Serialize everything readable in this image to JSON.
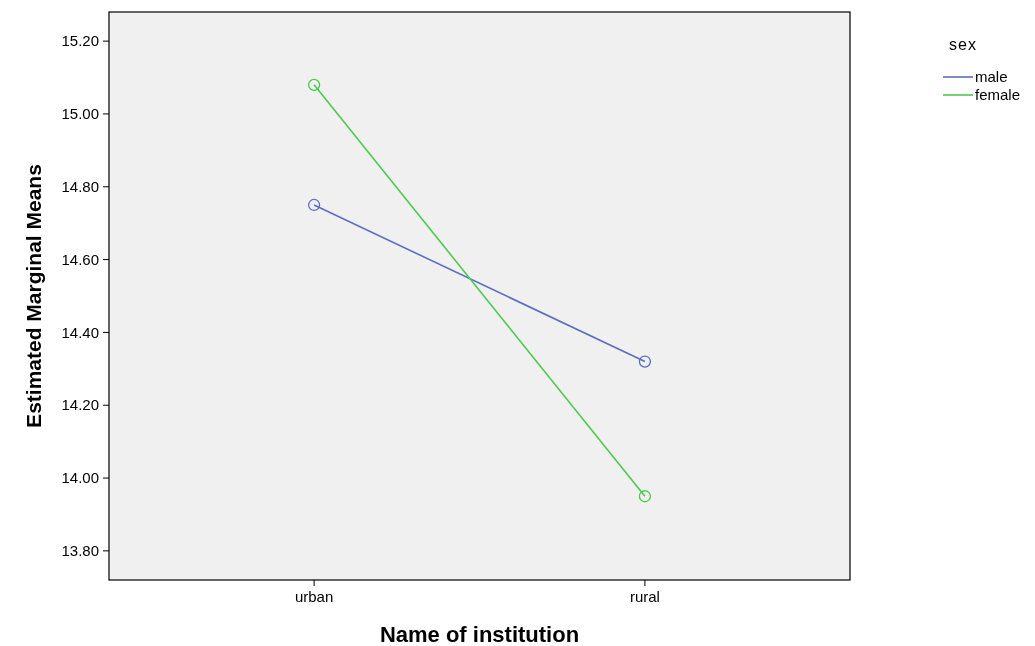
{
  "chart_data": {
    "type": "line",
    "xlabel": "Name of institution",
    "ylabel": "Estimated Marginal Means",
    "legend_title": "sex",
    "categories": [
      "urban",
      "rural"
    ],
    "series": [
      {
        "name": "male",
        "color": "#5b6fc0",
        "values": [
          14.75,
          14.32
        ]
      },
      {
        "name": "female",
        "color": "#4dc94d",
        "values": [
          15.08,
          13.95
        ]
      }
    ],
    "ylim": [
      13.72,
      15.28
    ],
    "yticks": [
      {
        "value": 13.8,
        "label": "13.80"
      },
      {
        "value": 14,
        "label": "14.00"
      },
      {
        "value": 14.2,
        "label": "14.20"
      },
      {
        "value": 14.4,
        "label": "14.40"
      },
      {
        "value": 14.6,
        "label": "14.60"
      },
      {
        "value": 14.8,
        "label": "14.80"
      },
      {
        "value": 15,
        "label": "15.00"
      },
      {
        "value": 15.2,
        "label": "15.20"
      }
    ],
    "grid": false,
    "legend": "top right",
    "marker": "circle",
    "line_style": "solid"
  }
}
